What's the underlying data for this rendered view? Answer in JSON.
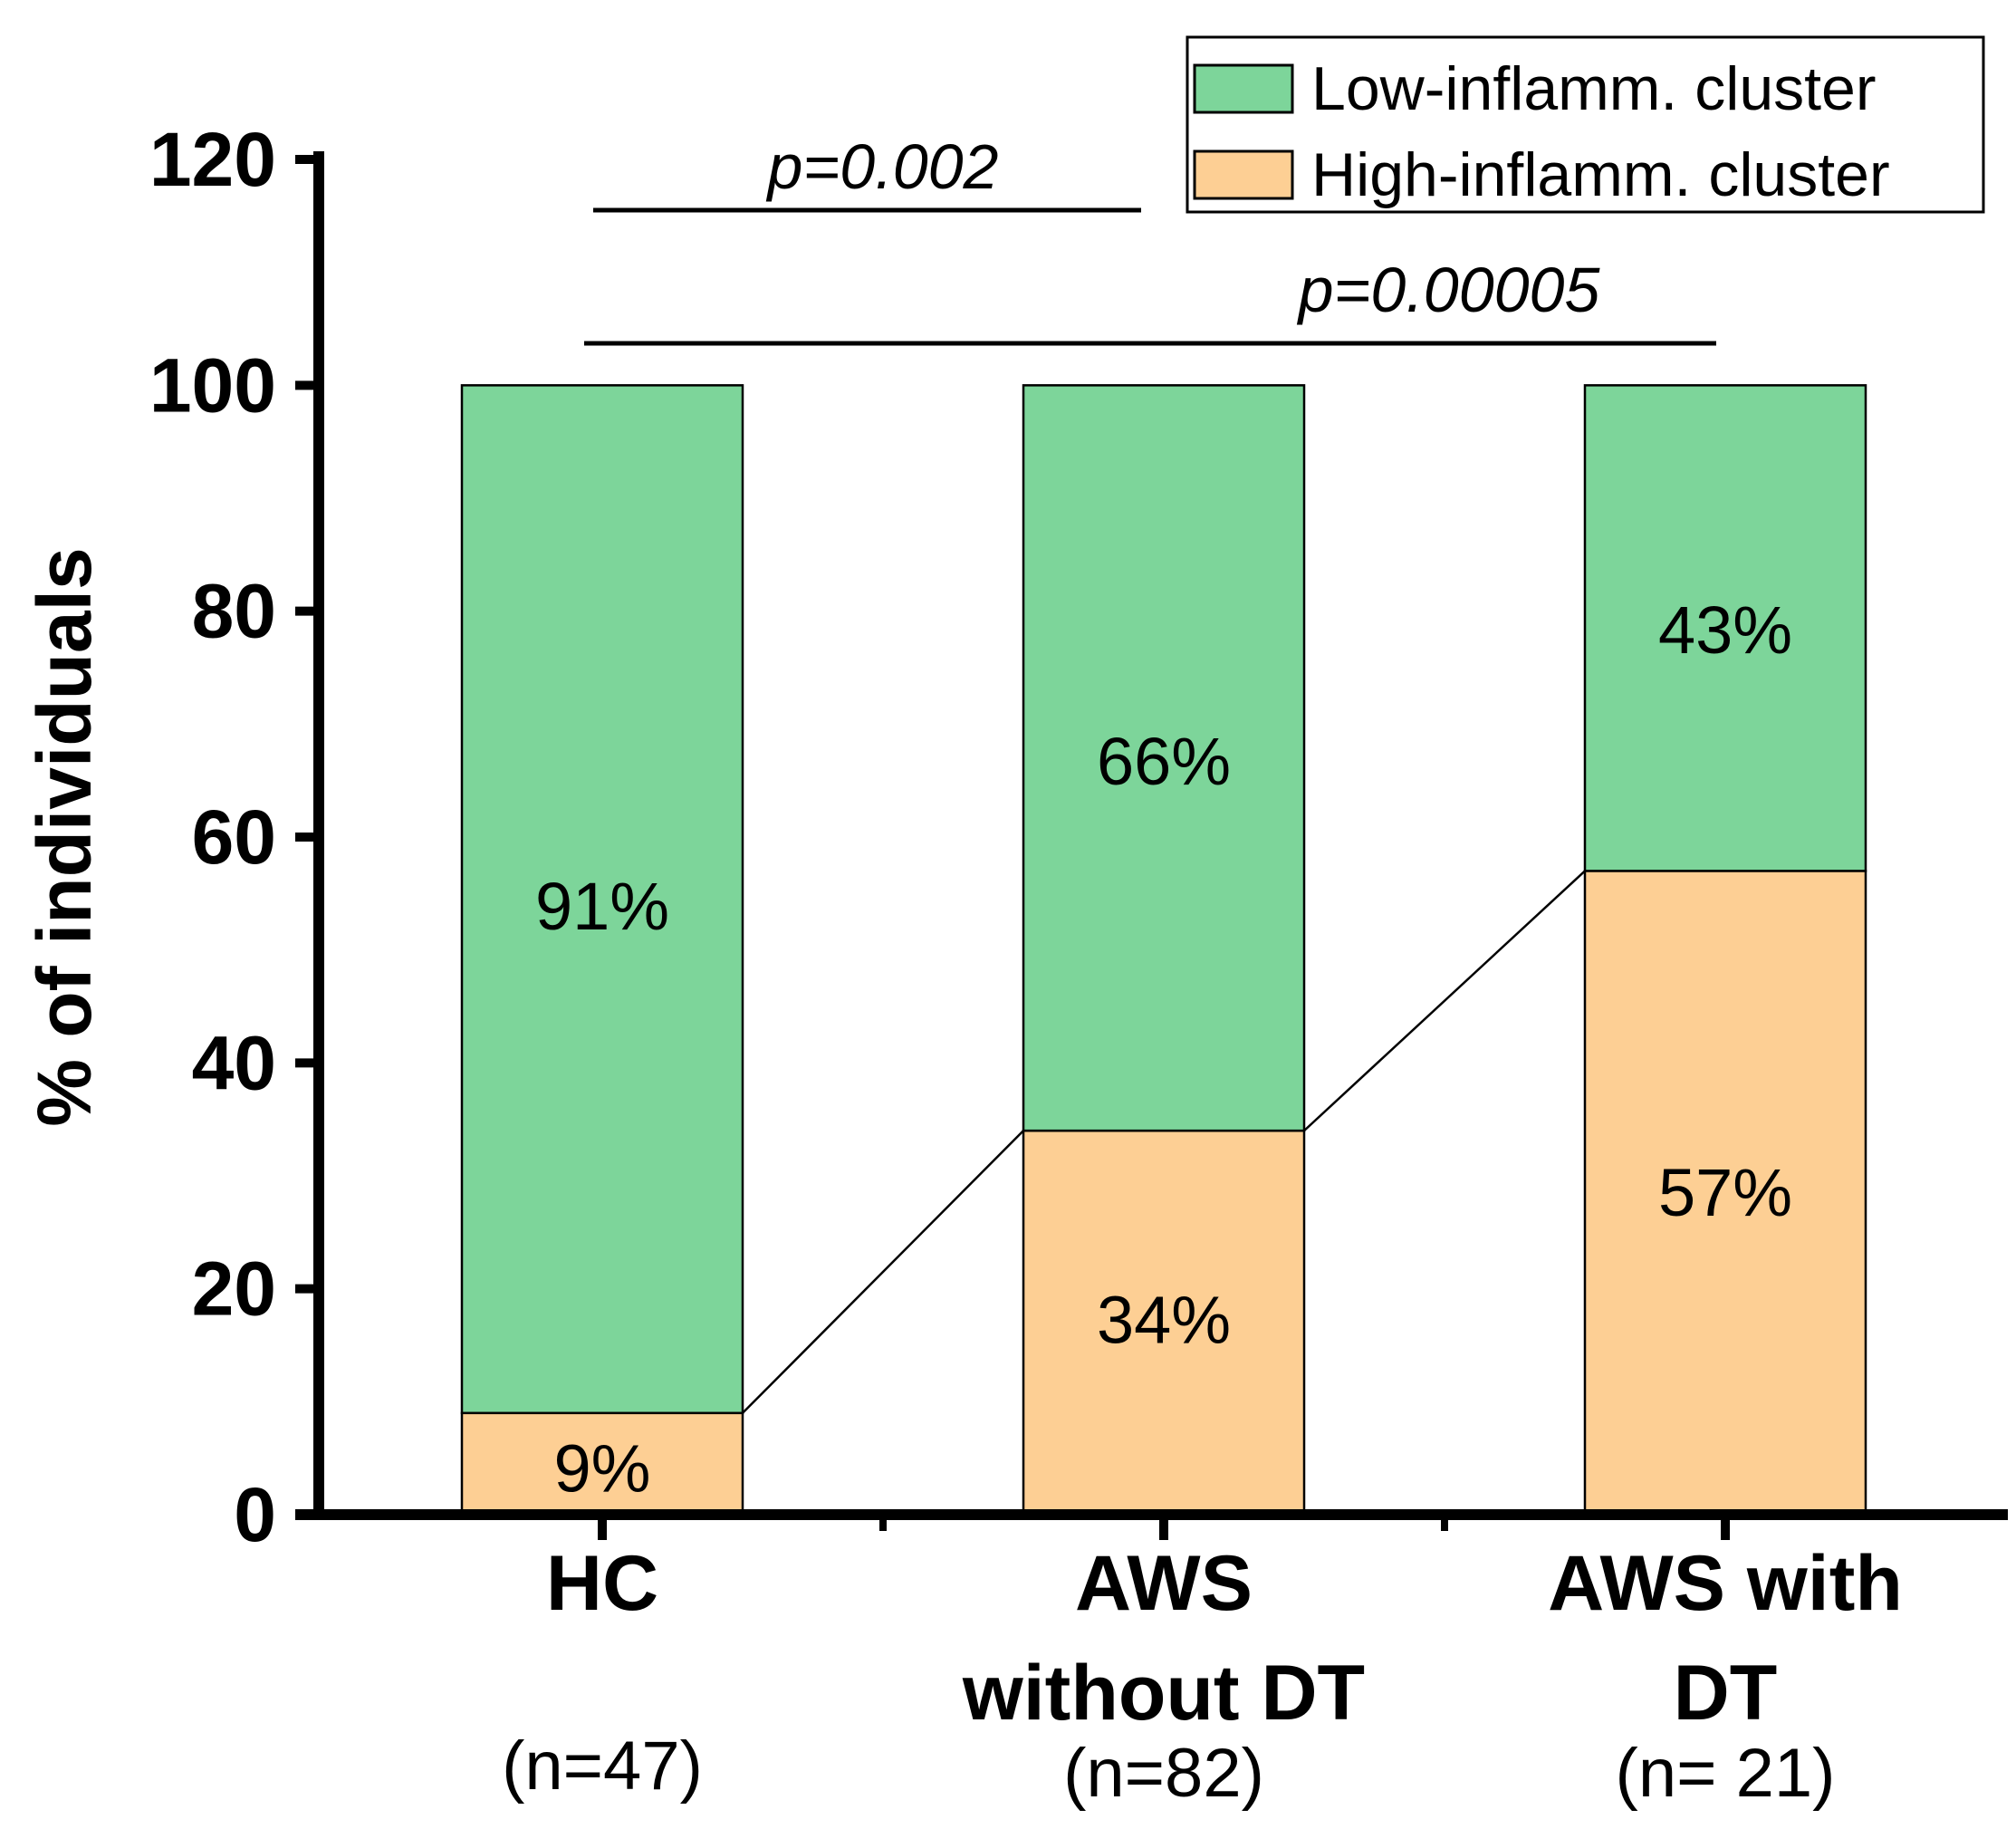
{
  "chart_data": {
    "type": "bar",
    "stacked": true,
    "categories": [
      "HC",
      "AWS without DT",
      "AWS with DT"
    ],
    "category_lines": [
      [
        "HC"
      ],
      [
        "AWS",
        "without DT"
      ],
      [
        "AWS with",
        "DT"
      ]
    ],
    "sample_sizes": [
      "(n=47)",
      "(n=82)",
      "(n= 21)"
    ],
    "series": [
      {
        "name": "High-inflamm. cluster",
        "values": [
          9,
          34,
          57
        ],
        "labels": [
          "9%",
          "34%",
          "57%"
        ],
        "color": "#FDCF94"
      },
      {
        "name": "Low-inflamm. cluster",
        "values": [
          91,
          66,
          43
        ],
        "labels": [
          "91%",
          "66%",
          "43%"
        ],
        "color": "#7DD59A"
      }
    ],
    "ylabel": "% of individuals",
    "xlabel": "",
    "ylim": [
      0,
      120
    ],
    "yticks": [
      0,
      20,
      40,
      60,
      80,
      100,
      120
    ],
    "legend_position": "top-right",
    "legend_order": [
      "Low-inflamm. cluster",
      "High-inflamm. cluster"
    ],
    "connector_lines": true,
    "annotations": [
      {
        "text": "p=0.002",
        "from": "HC",
        "to": "AWS without DT"
      },
      {
        "text": "p=0.00005",
        "from": "HC",
        "to": "AWS with DT"
      }
    ],
    "grid": false
  }
}
